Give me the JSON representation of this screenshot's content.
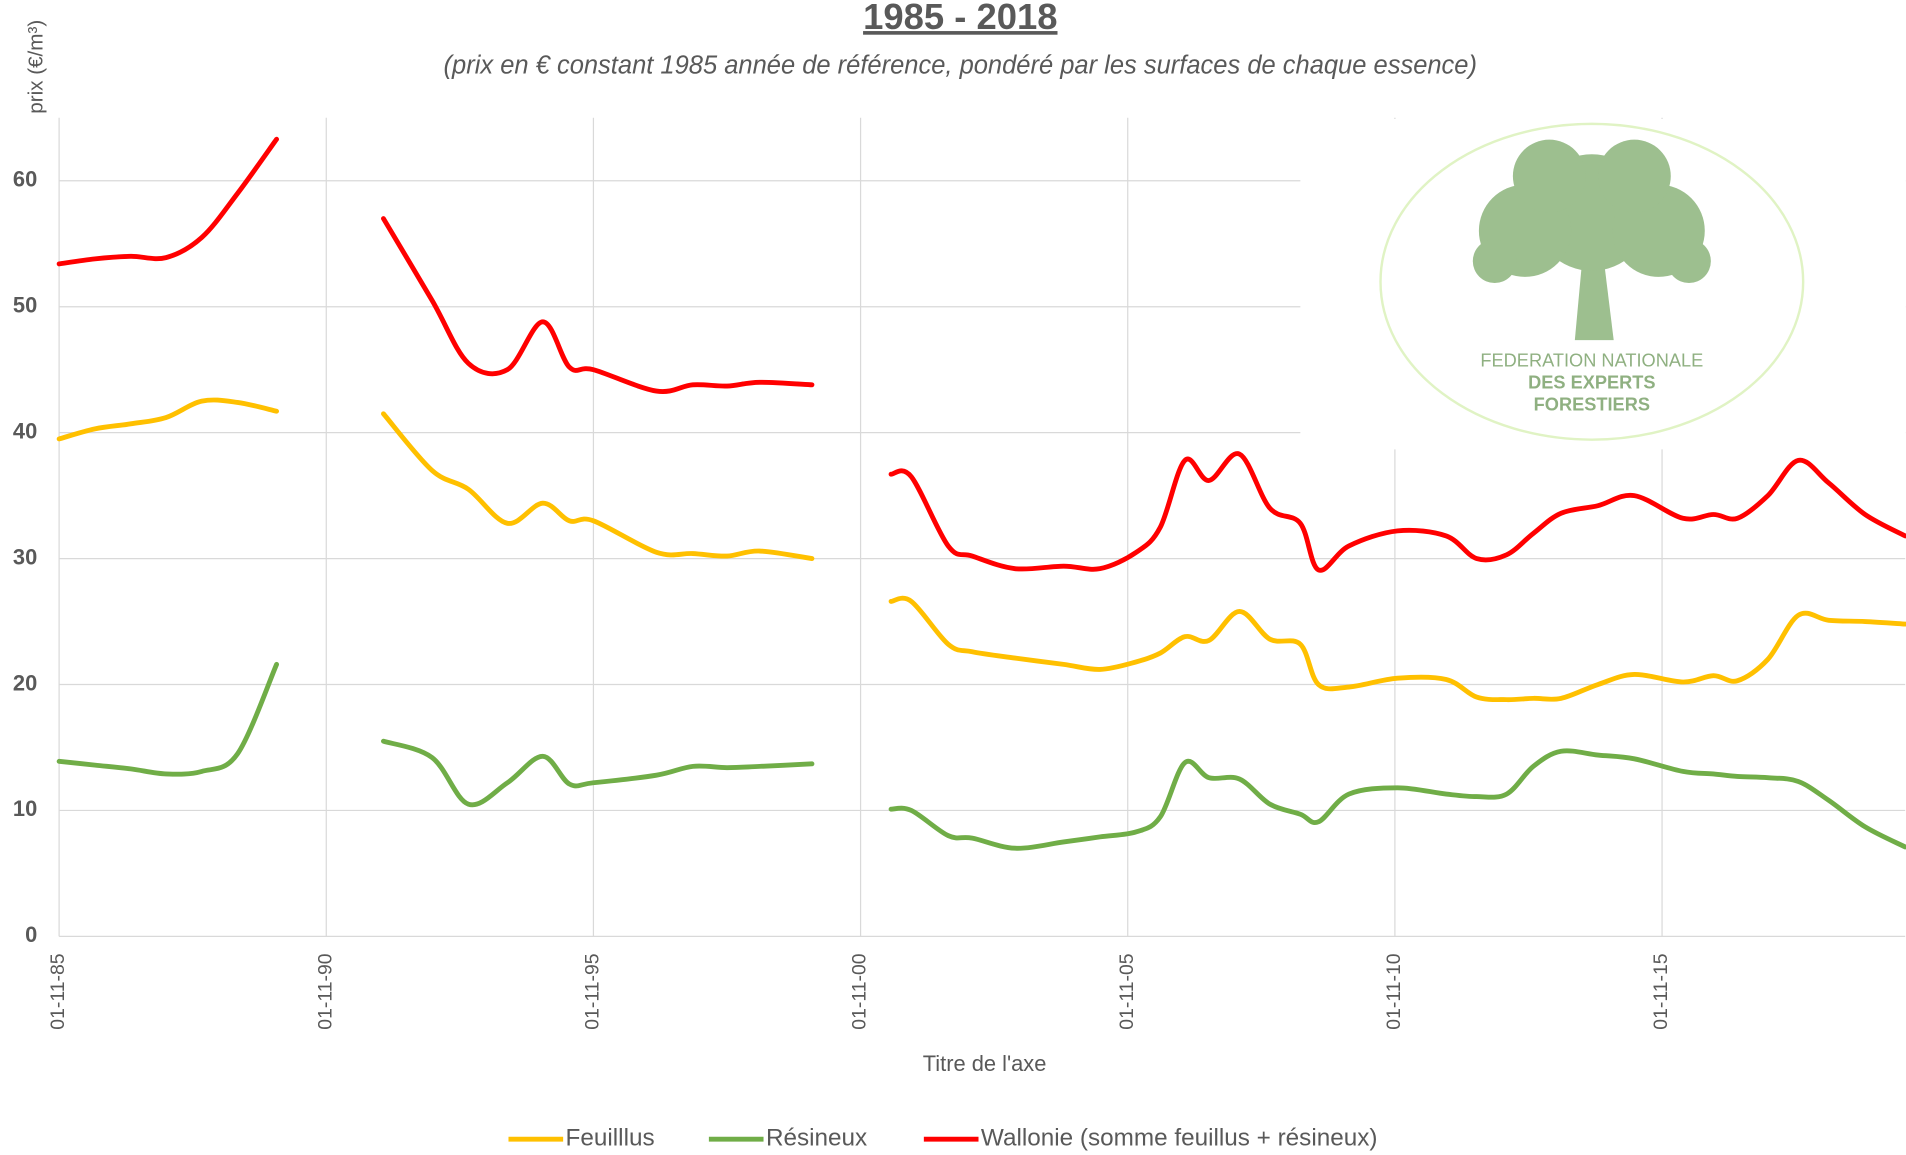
{
  "chart_data": {
    "type": "line",
    "title": "1985 - 2018",
    "subtitle": "(prix en € constant 1985 année de référence, pondéré par les surfaces de chaque essence)",
    "y_label": "prix (€/m³)",
    "x_label": "Titre de l'axe",
    "annotations": [
      "FEDERATION NATIONALE",
      "DES EXPERTS",
      "FORESTIERS"
    ],
    "x": [
      1985.83,
      1986.5,
      1987.17,
      1987.83,
      1988.5,
      1989.17,
      1989.9,
      1990.4,
      1991.9,
      1992.81,
      1993.49,
      1994.22,
      1994.88,
      1995.38,
      1995.83,
      1997.01,
      1997.69,
      1998.33,
      1998.94,
      1999.92,
      2000.2,
      2001.4,
      2001.78,
      2002.47,
      2002.92,
      2003.72,
      2004.63,
      2005.31,
      2005.99,
      2006.44,
      2006.9,
      2007.35,
      2007.92,
      2008.49,
      2009.06,
      2009.4,
      2009.97,
      2010.88,
      2011.79,
      2012.36,
      2012.92,
      2013.42,
      2013.94,
      2014.63,
      2015.31,
      2016.22,
      2016.79,
      2017.24,
      2017.81,
      2018.38,
      2018.95,
      2019.63,
      2020.38
    ],
    "series": [
      {
        "name": "Feuilllus",
        "color": "#ffc000",
        "values": [
          39.5,
          40.3,
          40.7,
          41.2,
          42.5,
          42.4,
          41.7,
          null,
          41.5,
          37,
          35.5,
          32.8,
          34.4,
          33.0,
          33.0,
          30.5,
          30.4,
          30.2,
          30.6,
          30.0,
          null,
          26.6,
          26.6,
          23.2,
          22.6,
          22.1,
          21.6,
          21.2,
          21.8,
          22.5,
          23.8,
          23.5,
          25.8,
          23.6,
          23.2,
          20,
          19.8,
          20.5,
          20.4,
          19,
          18.8,
          18.9,
          18.9,
          20,
          20.8,
          20.2,
          20.7,
          20.3,
          22,
          25.5,
          25.1,
          25.0,
          24.8
        ]
      },
      {
        "name": "Résineux",
        "color": "#70ad47",
        "values": [
          13.9,
          13.6,
          13.3,
          12.9,
          13.1,
          14.5,
          21.6,
          null,
          15.5,
          14.2,
          10.5,
          12.2,
          14.3,
          12.1,
          12.2,
          12.8,
          13.5,
          13.4,
          13.5,
          13.7,
          null,
          10.1,
          10.0,
          8.0,
          7.8,
          7.0,
          7.5,
          7.9,
          8.3,
          9.5,
          13.8,
          12.6,
          12.5,
          10.5,
          9.7,
          9.1,
          11.3,
          11.8,
          11.3,
          11.1,
          11.3,
          13.5,
          14.7,
          14.4,
          14.1,
          13.1,
          12.9,
          12.7,
          12.6,
          12.3,
          10.8,
          8.7,
          7.1
        ]
      },
      {
        "name": "Wallonie (somme feuillus + résineux)",
        "color": "#ff0000",
        "values": [
          53.4,
          53.8,
          54.0,
          53.9,
          55.5,
          59,
          63.3,
          null,
          57,
          50.5,
          45.5,
          45,
          48.8,
          45.2,
          45,
          43.3,
          43.8,
          43.7,
          44,
          43.8,
          null,
          36.7,
          36.5,
          31,
          30.2,
          29.2,
          29.4,
          29.2,
          30.5,
          32.5,
          37.8,
          36.2,
          38.3,
          34,
          32.8,
          29.1,
          31,
          32.2,
          31.8,
          30,
          30.3,
          32,
          33.6,
          34.2,
          35,
          33.2,
          33.5,
          33.2,
          35,
          37.8,
          36,
          33.5,
          31.8
        ]
      }
    ],
    "xlim": [
      1985.83,
      2020.38
    ],
    "xticks": [
      {
        "value": 1985.83,
        "label": "01-11-85"
      },
      {
        "value": 1990.83,
        "label": "01-11-90"
      },
      {
        "value": 1995.83,
        "label": "01-11-95"
      },
      {
        "value": 2000.83,
        "label": "01-11-00"
      },
      {
        "value": 2005.83,
        "label": "01-11-05"
      },
      {
        "value": 2010.83,
        "label": "01-11-10"
      },
      {
        "value": 2015.83,
        "label": "01-11-15"
      }
    ],
    "ylim": [
      0,
      65
    ],
    "yticks": [
      0,
      10,
      20,
      30,
      40,
      50,
      60
    ],
    "grid": true,
    "legend": "bottom"
  }
}
